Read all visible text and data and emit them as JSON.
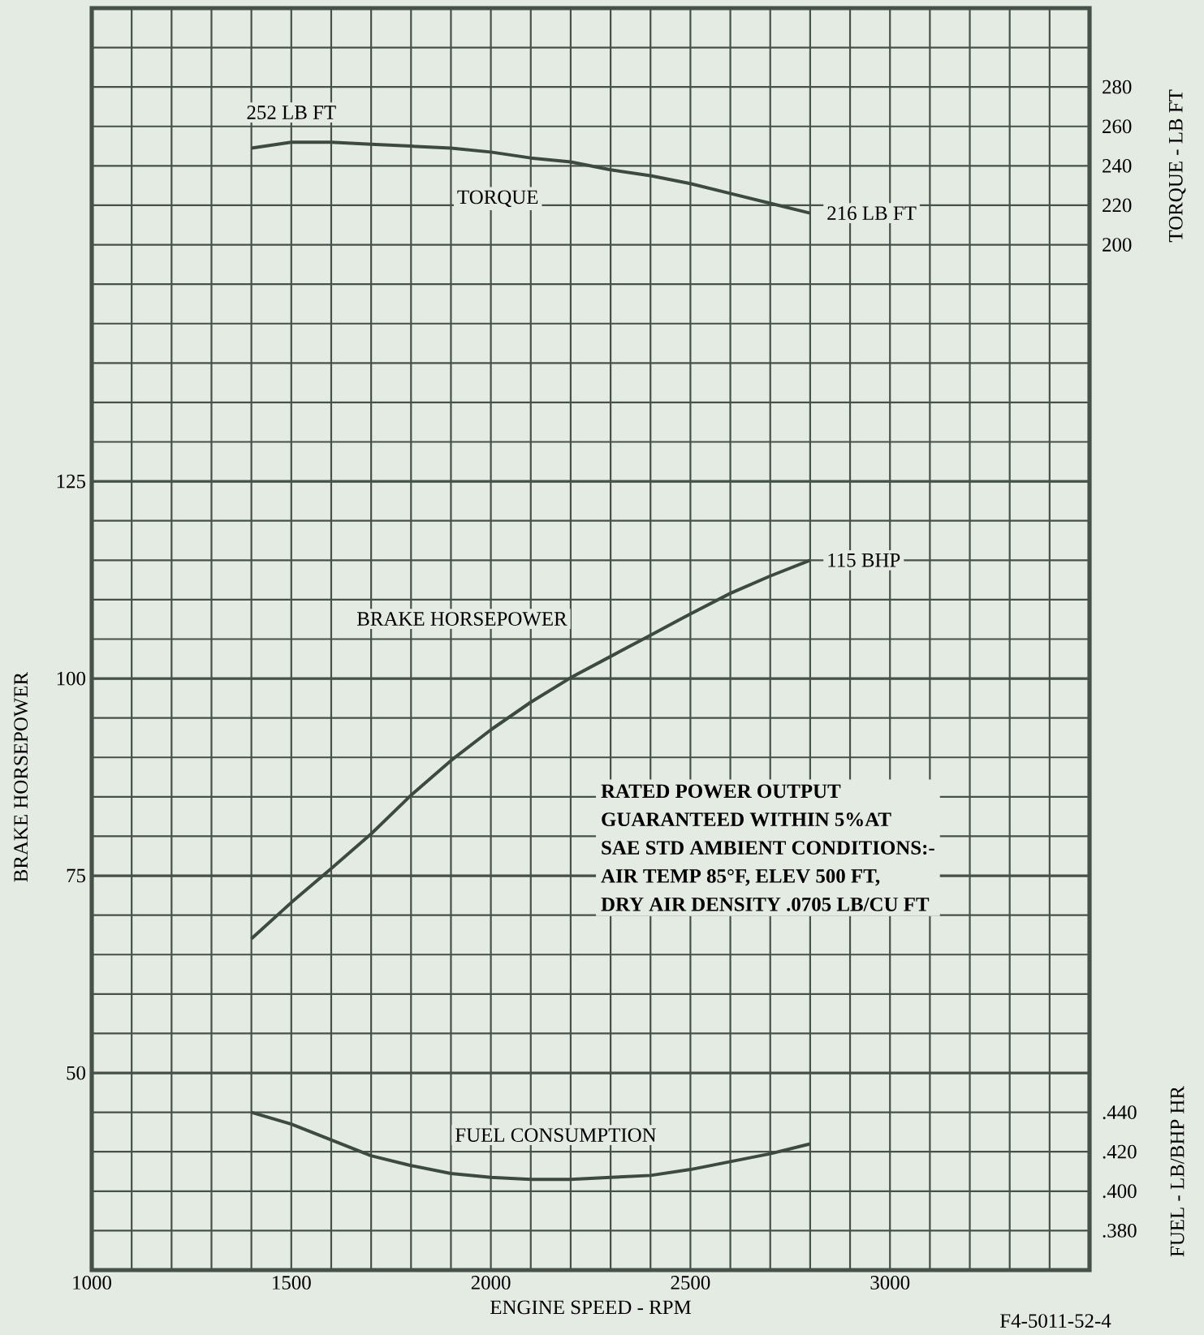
{
  "chart_data": {
    "type": "line",
    "xlabel": "ENGINE SPEED - RPM",
    "ylabel": "BRAKE HORSEPOWER",
    "y2label": "TORQUE - LB FT",
    "y3label": "FUEL - LB/BHP HR",
    "x": [
      1400,
      1500,
      1600,
      1700,
      1800,
      1900,
      2000,
      2100,
      2200,
      2300,
      2400,
      2500,
      2600,
      2700,
      2800
    ],
    "series": [
      {
        "name": "TORQUE",
        "color": "#3d4a3f",
        "axis": "y2",
        "values": [
          249,
          252,
          252,
          251,
          250,
          249,
          247,
          244,
          242,
          238,
          235,
          231,
          226,
          221,
          216
        ]
      },
      {
        "name": "BRAKE HORSEPOWER",
        "color": "#3d4a3f",
        "values": [
          67,
          71.6,
          75.9,
          80.3,
          85.2,
          89.6,
          93.5,
          97,
          100.1,
          102.8,
          105.5,
          108.2,
          110.8,
          113,
          115
        ]
      },
      {
        "name": "FUEL CONSUMPTION",
        "color": "#3d4a3f",
        "axis": "y3",
        "values": [
          0.44,
          0.434,
          0.426,
          0.418,
          0.413,
          0.409,
          0.407,
          0.406,
          0.406,
          0.407,
          0.408,
          0.411,
          0.415,
          0.419,
          0.424
        ]
      }
    ],
    "xlim": [
      1000,
      3500
    ],
    "xticks": [
      1000,
      1500,
      2000,
      2500,
      3000
    ],
    "ylim": [
      25,
      185
    ],
    "yticks": [
      50,
      75,
      100,
      125
    ],
    "y2lim": [
      -320,
      320
    ],
    "y2ticks": [
      200,
      220,
      240,
      260,
      280
    ],
    "y3lim": [
      0.36,
      1.0
    ],
    "y3ticks": [
      {
        "value": 0.38,
        "label": ".380"
      },
      {
        "value": 0.4,
        "label": ".400"
      },
      {
        "value": 0.42,
        "label": ".420"
      },
      {
        "value": 0.44,
        "label": ".440"
      }
    ],
    "grid": true,
    "line_style": "solid",
    "annotations": [
      "252 LB FT",
      "216 LB FT",
      "115 BHP",
      "RATED POWER OUTPUT",
      "GUARANTEED WITHIN 5%AT",
      "SAE STD AMBIENT CONDITIONS:-",
      "AIR TEMP 85°F, ELEV 500 FT,",
      "DRY AIR DENSITY .0705 LB/CU FT",
      "F4-5011-52-4"
    ]
  }
}
